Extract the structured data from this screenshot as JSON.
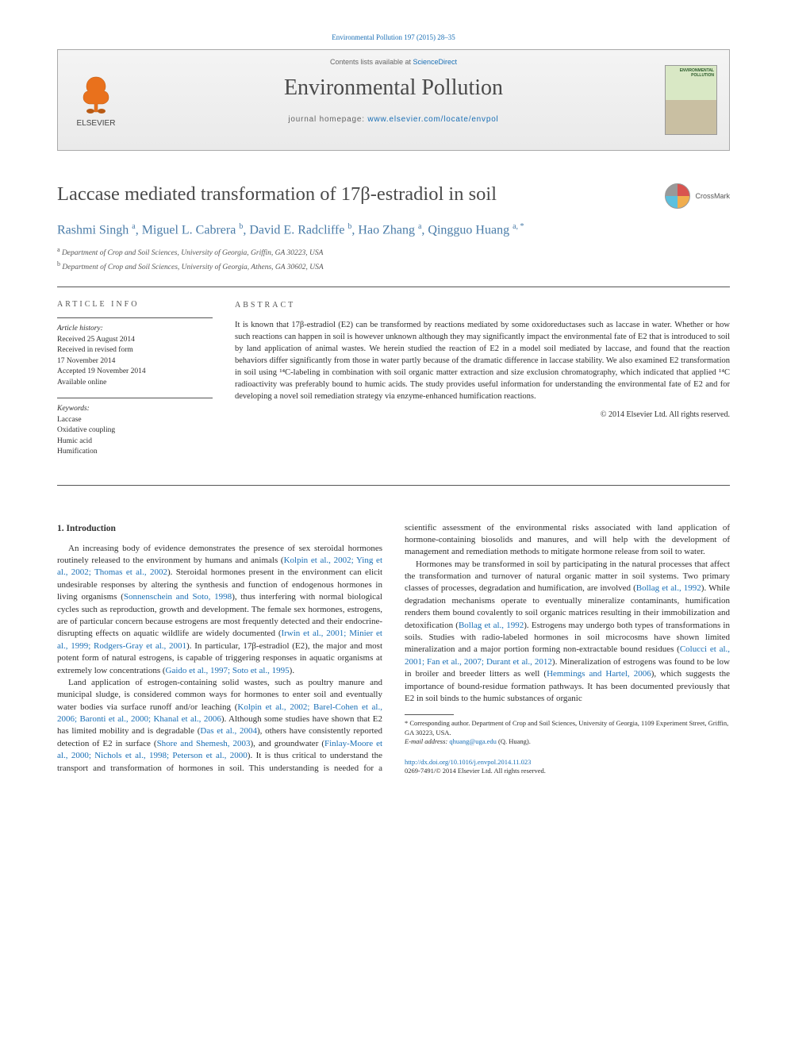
{
  "citation": "Environmental Pollution 197 (2015) 28–35",
  "masthead": {
    "contents_prefix": "Contents lists available at ",
    "contents_link": "ScienceDirect",
    "journal": "Environmental Pollution",
    "homepage_prefix": "journal homepage: ",
    "homepage_url": "www.elsevier.com/locate/envpol",
    "publisher": "ELSEVIER"
  },
  "title": "Laccase mediated transformation of 17β-estradiol in soil",
  "crossmark": "CrossMark",
  "authors_html": "Rashmi Singh <sup>a</sup>, Miguel L. Cabrera <sup>b</sup>, David E. Radcliffe <sup>b</sup>, Hao Zhang <sup>a</sup>, Qingguo Huang <sup>a, *</sup>",
  "affiliations": [
    {
      "sup": "a",
      "text": "Department of Crop and Soil Sciences, University of Georgia, Griffin, GA 30223, USA"
    },
    {
      "sup": "b",
      "text": "Department of Crop and Soil Sciences, University of Georgia, Athens, GA 30602, USA"
    }
  ],
  "info": {
    "heading": "ARTICLE INFO",
    "history_label": "Article history:",
    "history": [
      "Received 25 August 2014",
      "Received in revised form",
      "17 November 2014",
      "Accepted 19 November 2014",
      "Available online"
    ],
    "keywords_label": "Keywords:",
    "keywords": [
      "Laccase",
      "Oxidative coupling",
      "Humic acid",
      "Humification"
    ]
  },
  "abstract": {
    "heading": "ABSTRACT",
    "text": "It is known that 17β-estradiol (E2) can be transformed by reactions mediated by some oxidoreductases such as laccase in water. Whether or how such reactions can happen in soil is however unknown although they may significantly impact the environmental fate of E2 that is introduced to soil by land application of animal wastes. We herein studied the reaction of E2 in a model soil mediated by laccase, and found that the reaction behaviors differ significantly from those in water partly because of the dramatic difference in laccase stability. We also examined E2 transformation in soil using ¹⁴C-labeling in combination with soil organic matter extraction and size exclusion chromatography, which indicated that applied ¹⁴C radioactivity was preferably bound to humic acids. The study provides useful information for understanding the environmental fate of E2 and for developing a novel soil remediation strategy via enzyme-enhanced humification reactions.",
    "copyright": "© 2014 Elsevier Ltd. All rights reserved."
  },
  "section_heading": "1. Introduction",
  "paragraphs": {
    "p1a": "An increasing body of evidence demonstrates the presence of sex steroidal hormones routinely released to the environment by humans and animals (",
    "p1_ref1": "Kolpin et al., 2002; Ying et al., 2002; Thomas et al., 2002",
    "p1b": "). Steroidal hormones present in the environment can elicit undesirable responses by altering the synthesis and function of endogenous hormones in living organisms (",
    "p1_ref2": "Sonnenschein and Soto, 1998",
    "p1c": "), thus interfering with normal biological cycles such as reproduction, growth and development. The female sex hormones, estrogens, are of particular concern because estrogens are most frequently detected and their endocrine-disrupting effects on aquatic wildlife are widely documented (",
    "p1_ref3": "Irwin et al., 2001; Minier et al., 1999; Rodgers-Gray et al., 2001",
    "p1d": "). In particular, 17β-estradiol (E2), the major and most potent form of natural estrogens, is capable of triggering responses in aquatic organisms at extremely low concentrations (",
    "p1_ref4": "Gaido et al., 1997; Soto et al., 1995",
    "p1e": ").",
    "p2a": "Land application of estrogen-containing solid wastes, such as poultry manure and municipal sludge, is considered common ways for hormones to enter soil and eventually water bodies via surface runoff and/or leaching (",
    "p2_ref1": "Kolpin et al., 2002; Barel-Cohen et al., 2006; Baronti et al., 2000; Khanal et al., 2006",
    "p2b": "). Although some studies have shown that E2 has limited mobility and is degradable (",
    "p2_ref2": "Das et al., 2004",
    "p2c": "), others have consistently reported detection of E2 in surface (",
    "p2_ref3": "Shore and Shemesh, 2003",
    "p2d": "), and groundwater (",
    "p2_ref4": "Finlay-Moore et al., 2000; Nichols et al., 1998; Peterson et al., 2000",
    "p2e": "). It is thus critical to understand the transport and transformation of hormones in soil. This understanding is needed for a scientific assessment of the environmental risks associated with land application of hormone-containing biosolids and manures, and will help with the development of management and remediation methods to mitigate hormone release from soil to water.",
    "p3a": "Hormones may be transformed in soil by participating in the natural processes that affect the transformation and turnover of natural organic matter in soil systems. Two primary classes of processes, degradation and humification, are involved (",
    "p3_ref1": "Bollag et al., 1992",
    "p3b": "). While degradation mechanisms operate to eventually mineralize contaminants, humification renders them bound covalently to soil organic matrices resulting in their immobilization and detoxification (",
    "p3_ref2": "Bollag et al., 1992",
    "p3c": "). Estrogens may undergo both types of transformations in soils. Studies with radio-labeled hormones in soil microcosms have shown limited mineralization and a major portion forming non-extractable bound residues (",
    "p3_ref3": "Colucci et al., 2001; Fan et al., 2007; Durant et al., 2012",
    "p3d": "). Mineralization of estrogens was found to be low in broiler and breeder litters as well (",
    "p3_ref4": "Hemmings and Hartel, 2006",
    "p3e": "), which suggests the importance of bound-residue formation pathways. It has been documented previously that E2 in soil binds to the humic substances of organic"
  },
  "footnotes": {
    "corr": "* Corresponding author. Department of Crop and Soil Sciences, University of Georgia, 1109 Experiment Street, Griffin, GA 30223, USA.",
    "email_label": "E-mail address: ",
    "email": "qhuang@uga.edu",
    "email_suffix": " (Q. Huang)."
  },
  "doi": {
    "url": "http://dx.doi.org/10.1016/j.envpol.2014.11.023",
    "copyright": "0269-7491/© 2014 Elsevier Ltd. All rights reserved."
  },
  "colors": {
    "link": "#1a6fb5",
    "text": "#2d2d2d",
    "heading": "#4a4a4a",
    "author": "#4a7ca8"
  }
}
